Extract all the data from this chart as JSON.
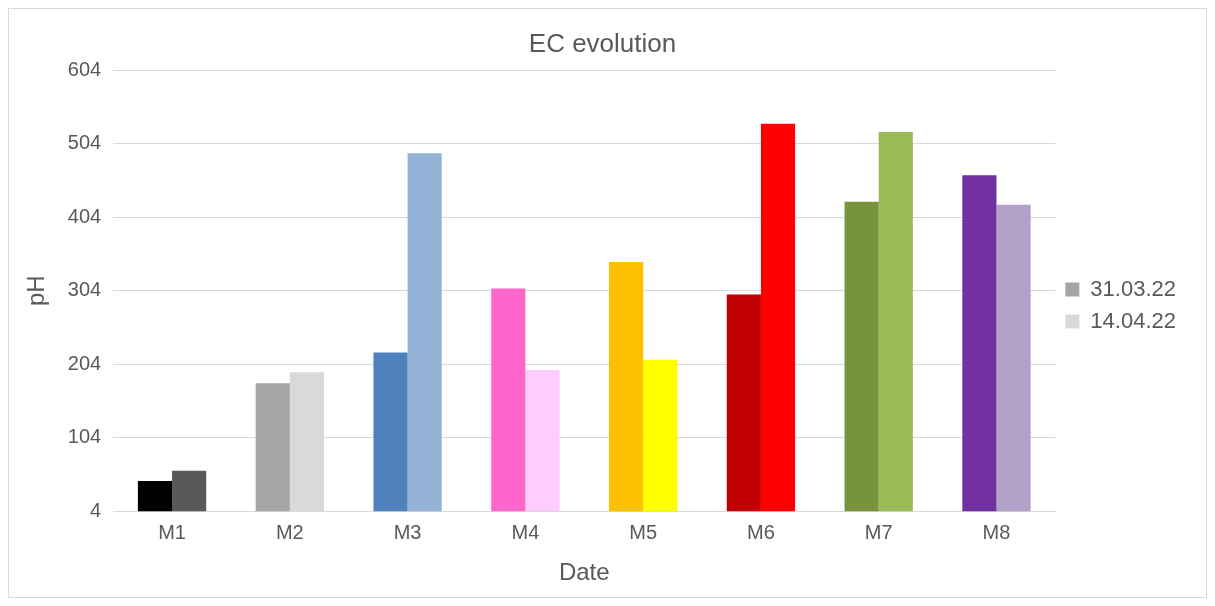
{
  "chart_data": {
    "type": "bar",
    "title": "EC evolution",
    "xlabel": "Date",
    "ylabel": "pH",
    "categories": [
      "M1",
      "M2",
      "M3",
      "M4",
      "M5",
      "M6",
      "M7",
      "M8"
    ],
    "series": [
      {
        "name": "31.03.22",
        "color": "#a5a5a5",
        "colors": [
          "#000000",
          "#a5a5a5",
          "#4f81bd",
          "#ff66cc",
          "#ffc000",
          "#c00000",
          "#77933c",
          "#7030a0"
        ],
        "values": [
          45,
          178,
          220,
          307,
          343,
          299,
          425,
          461
        ]
      },
      {
        "name": "14.04.22",
        "color": "#d9d9d9",
        "colors": [
          "#595959",
          "#d9d9d9",
          "#95b3d7",
          "#ffccff",
          "#ffff00",
          "#ff0000",
          "#9bbb59",
          "#b1a0c7"
        ],
        "values": [
          59,
          193,
          491,
          196,
          210,
          531,
          520,
          421
        ]
      }
    ],
    "ylim": [
      4,
      604
    ],
    "yticks": [
      4,
      104,
      204,
      304,
      404,
      504,
      604
    ],
    "grid": "y",
    "legend": "right"
  }
}
